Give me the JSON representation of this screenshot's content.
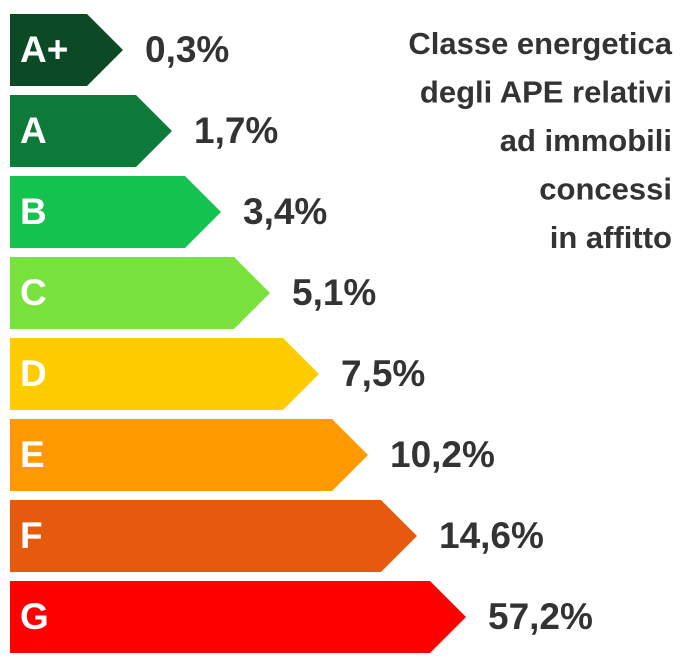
{
  "title_lines": [
    "Classe energetica",
    "degli APE relativi",
    "ad immobili",
    "concessi",
    "in affitto"
  ],
  "classes": [
    {
      "label": "A+",
      "value": "0,3%",
      "color": "#0b4a24"
    },
    {
      "label": "A",
      "value": "1,7%",
      "color": "#0e7a39"
    },
    {
      "label": "B",
      "value": "3,4%",
      "color": "#13c24f"
    },
    {
      "label": "C",
      "value": "5,1%",
      "color": "#79e23c"
    },
    {
      "label": "D",
      "value": "7,5%",
      "color": "#ffcc00"
    },
    {
      "label": "E",
      "value": "10,2%",
      "color": "#ff9900"
    },
    {
      "label": "F",
      "value": "14,6%",
      "color": "#e55a0c"
    },
    {
      "label": "G",
      "value": "57,2%",
      "color": "#ff0000"
    }
  ]
}
